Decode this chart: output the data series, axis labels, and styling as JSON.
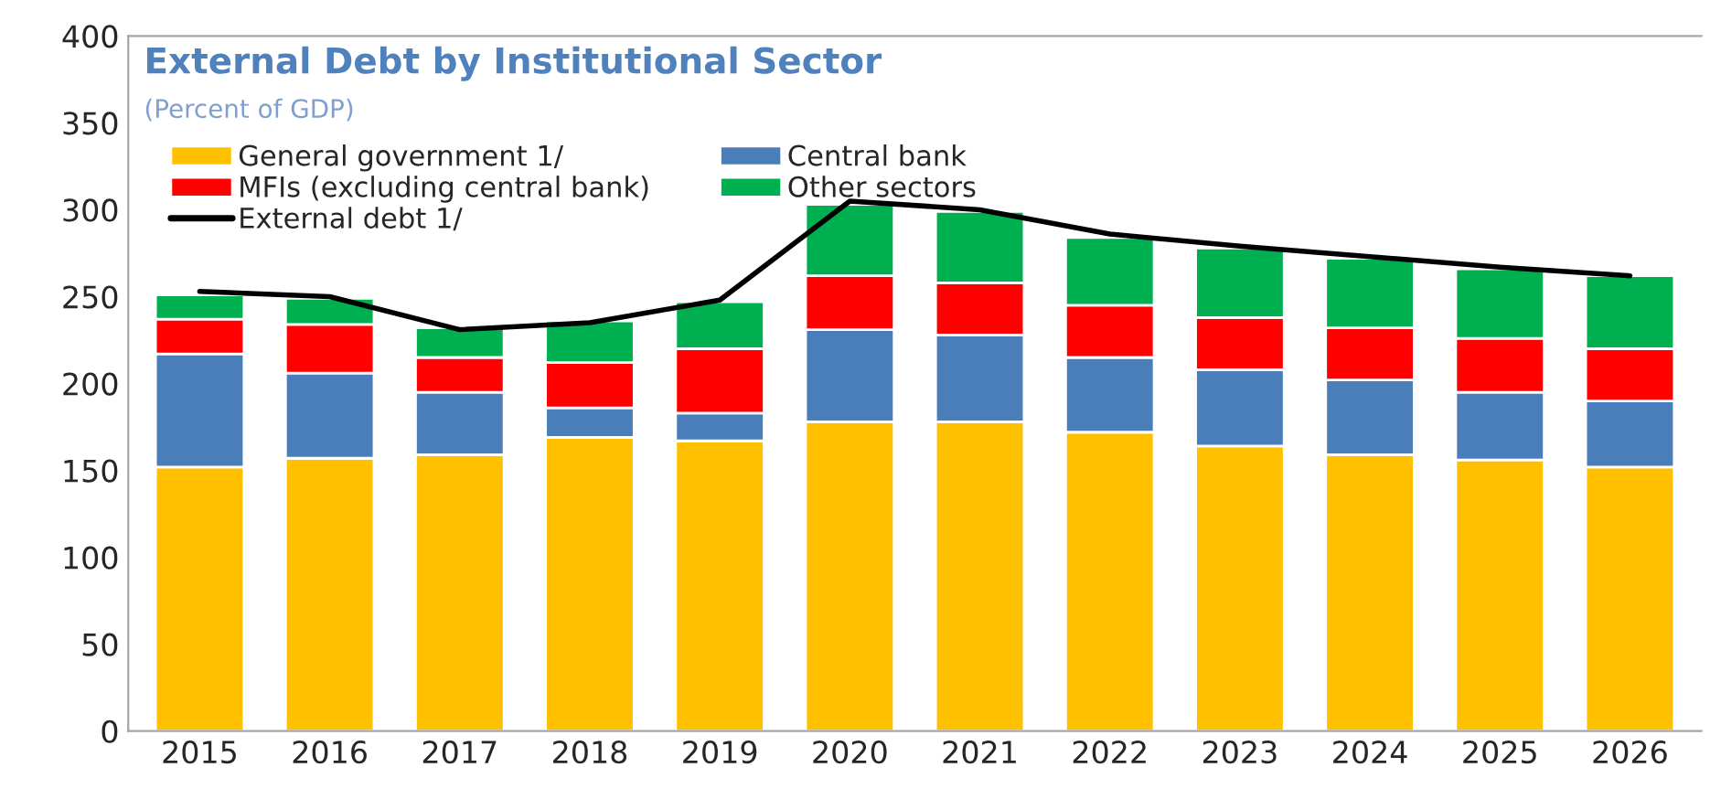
{
  "chart_data": {
    "type": "bar",
    "title": "External Debt by Institutional Sector",
    "subtitle": "(Percent of GDP)",
    "categories": [
      "2015",
      "2016",
      "2017",
      "2018",
      "2019",
      "2020",
      "2021",
      "2022",
      "2023",
      "2024",
      "2025",
      "2026"
    ],
    "stacked": true,
    "series": [
      {
        "name": "General government 1/",
        "color": "#ffc000",
        "values": [
          152,
          157,
          159,
          169,
          167,
          178,
          178,
          172,
          164,
          159,
          156,
          152
        ]
      },
      {
        "name": "Central bank",
        "color": "#4a7ebb",
        "values": [
          65,
          49,
          36,
          17,
          16,
          53,
          50,
          43,
          44,
          43,
          39,
          38
        ]
      },
      {
        "name": "MFIs (excluding central bank)",
        "color": "#ff0000",
        "values": [
          20,
          28,
          20,
          26,
          37,
          31,
          30,
          30,
          30,
          30,
          31,
          30
        ]
      },
      {
        "name": "Other sectors",
        "color": "#00b050",
        "values": [
          14,
          15,
          17,
          24,
          27,
          41,
          41,
          39,
          40,
          40,
          40,
          42
        ]
      },
      {
        "name": "External debt 1/",
        "type": "line",
        "color": "#000000",
        "values": [
          253,
          250,
          231,
          235,
          248,
          305,
          300,
          286,
          279,
          273,
          267,
          262
        ]
      }
    ],
    "ylim": [
      0,
      400
    ],
    "yticks": [
      0,
      50,
      100,
      150,
      200,
      250,
      300,
      350,
      400
    ],
    "legend": "top left",
    "grid": false
  }
}
